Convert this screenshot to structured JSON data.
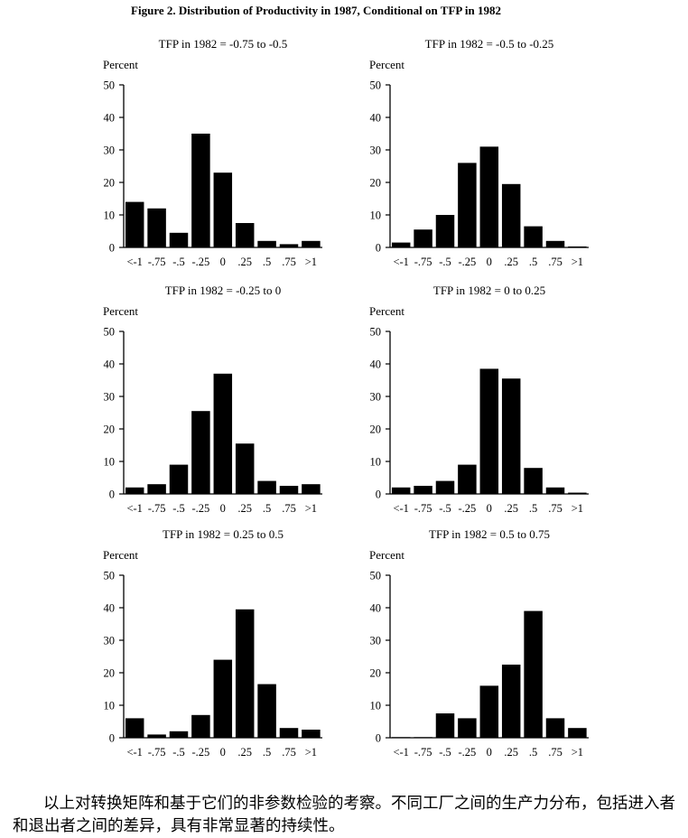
{
  "figure_title": "Figure 2. Distribution of Productivity in 1987, Conditional on TFP in 1982",
  "caption": "以上对转换矩阵和基于它们的非参数检验的考察。不同工厂之间的生产力分布，包括进入者和退出者之间的差异，具有非常显著的持续性。",
  "chart_data": [
    {
      "type": "bar",
      "title": "TFP in 1982 = -0.75 to -0.5",
      "ylabel": "Percent",
      "xlabel": "",
      "ylim": [
        0,
        50
      ],
      "yticks": [
        0,
        10,
        20,
        30,
        40,
        50
      ],
      "grid": false,
      "categories": [
        "<-1",
        "-.75",
        "-.5",
        "-.25",
        "0",
        ".25",
        ".5",
        ".75",
        ">1"
      ],
      "values": [
        14,
        12,
        4.5,
        35,
        23,
        7.5,
        2,
        1,
        2
      ]
    },
    {
      "type": "bar",
      "title": "TFP in 1982 = -0.5 to -0.25",
      "ylabel": "Percent",
      "xlabel": "",
      "ylim": [
        0,
        50
      ],
      "yticks": [
        0,
        10,
        20,
        30,
        40,
        50
      ],
      "grid": false,
      "categories": [
        "<-1",
        "-.75",
        "-.5",
        "-.25",
        "0",
        ".25",
        ".5",
        ".75",
        ">1"
      ],
      "values": [
        1.5,
        5.5,
        10,
        26,
        31,
        19.5,
        6.5,
        2,
        0.3
      ]
    },
    {
      "type": "bar",
      "title": "TFP in 1982 = -0.25 to 0",
      "ylabel": "Percent",
      "xlabel": "",
      "ylim": [
        0,
        50
      ],
      "yticks": [
        0,
        10,
        20,
        30,
        40,
        50
      ],
      "grid": false,
      "categories": [
        "<-1",
        "-.75",
        "-.5",
        "-.25",
        "0",
        ".25",
        ".5",
        ".75",
        ">1"
      ],
      "values": [
        2,
        3,
        9,
        25.5,
        37,
        15.5,
        4,
        2.5,
        3
      ]
    },
    {
      "type": "bar",
      "title": "TFP in 1982 = 0 to 0.25",
      "ylabel": "Percent",
      "xlabel": "",
      "ylim": [
        0,
        50
      ],
      "yticks": [
        0,
        10,
        20,
        30,
        40,
        50
      ],
      "grid": false,
      "categories": [
        "<-1",
        "-.75",
        "-.5",
        "-.25",
        "0",
        ".25",
        ".5",
        ".75",
        ">1"
      ],
      "values": [
        2,
        2.5,
        4,
        9,
        38.5,
        35.5,
        8,
        2,
        0.4
      ]
    },
    {
      "type": "bar",
      "title": "TFP in 1982 = 0.25 to 0.5",
      "ylabel": "Percent",
      "xlabel": "",
      "ylim": [
        0,
        50
      ],
      "yticks": [
        0,
        10,
        20,
        30,
        40,
        50
      ],
      "grid": false,
      "categories": [
        "<-1",
        "-.75",
        "-.5",
        "-.25",
        "0",
        ".25",
        ".5",
        ".75",
        ">1"
      ],
      "values": [
        6,
        1,
        2,
        7,
        24,
        39.5,
        16.5,
        3,
        2.5
      ]
    },
    {
      "type": "bar",
      "title": "TFP in 1982 = 0.5 to 0.75",
      "ylabel": "Percent",
      "xlabel": "",
      "ylim": [
        0,
        50
      ],
      "yticks": [
        0,
        10,
        20,
        30,
        40,
        50
      ],
      "grid": false,
      "categories": [
        "<-1",
        "-.75",
        "-.5",
        "-.25",
        "0",
        ".25",
        ".5",
        ".75",
        ">1"
      ],
      "values": [
        0.2,
        0.2,
        7.5,
        6,
        16,
        22.5,
        39,
        6,
        3
      ]
    }
  ]
}
